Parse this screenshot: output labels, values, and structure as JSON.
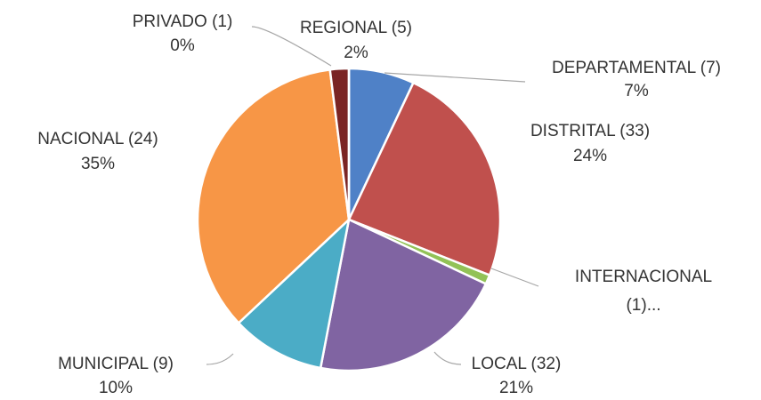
{
  "chart_data": {
    "type": "pie",
    "categories": [
      "DEPARTAMENTAL (7)",
      "DISTRITAL (33)",
      "INTERNACIONAL",
      "LOCAL (32)",
      "MUNICIPAL (9)",
      "NACIONAL (24)",
      "REGIONAL (5)",
      "PRIVADO (1)"
    ],
    "values": [
      7,
      24,
      1,
      21,
      10,
      35,
      2,
      0
    ],
    "value_labels": [
      "7%",
      "24%",
      "(1)...",
      "21%",
      "10%",
      "35%",
      "2%",
      "0%"
    ],
    "colors": [
      "#4f81c7",
      "#c0504d",
      "#92c257",
      "#8064a2",
      "#4bacc6",
      "#f79646",
      "#7a2424",
      "#5a1a1a"
    ]
  }
}
